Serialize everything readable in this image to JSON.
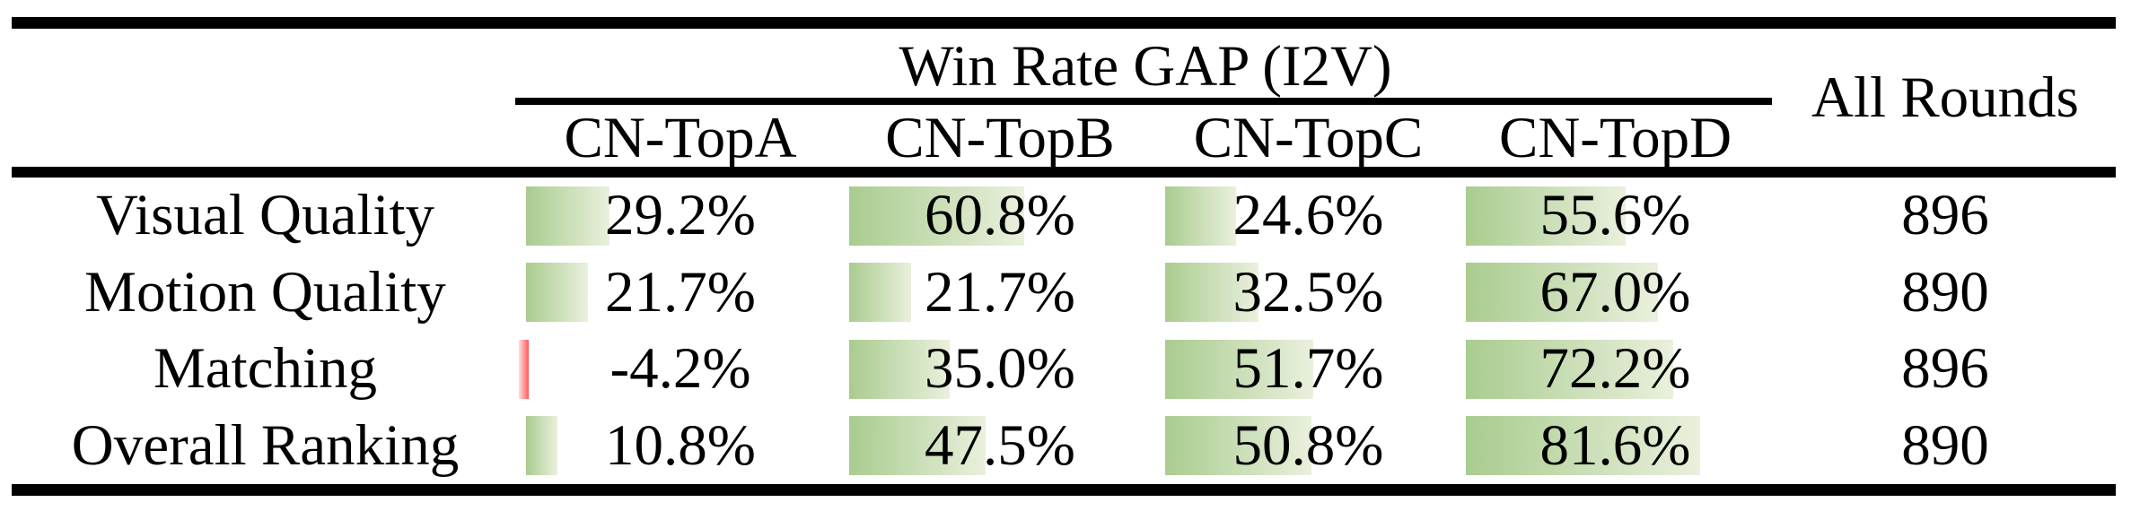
{
  "table": {
    "group_header": "Win Rate GAP (I2V)",
    "all_rounds_header": "All Rounds",
    "columns": [
      "CN-TopA",
      "CN-TopB",
      "CN-TopC",
      "CN-TopD"
    ],
    "rows": [
      {
        "label": "Visual Quality",
        "values": [
          29.2,
          60.8,
          24.6,
          55.6
        ],
        "display": [
          "29.2%",
          "60.8%",
          "24.6%",
          "55.6%"
        ],
        "all_rounds": "896"
      },
      {
        "label": "Motion Quality",
        "values": [
          21.7,
          21.7,
          32.5,
          67.0
        ],
        "display": [
          "21.7%",
          "21.7%",
          "32.5%",
          "67.0%"
        ],
        "all_rounds": "890"
      },
      {
        "label": "Matching",
        "values": [
          -4.2,
          35.0,
          51.7,
          72.2
        ],
        "display": [
          "-4.2%",
          "35.0%",
          "51.7%",
          "72.2%"
        ],
        "all_rounds": "896"
      },
      {
        "label": "Overall Ranking",
        "values": [
          10.8,
          47.5,
          50.8,
          81.6
        ],
        "display": [
          "10.8%",
          "47.5%",
          "50.8%",
          "81.6%"
        ],
        "all_rounds": "890"
      }
    ]
  },
  "chart_data": {
    "type": "table",
    "title": "Win Rate GAP (I2V)",
    "categories": [
      "Visual Quality",
      "Motion Quality",
      "Matching",
      "Overall Ranking"
    ],
    "series": [
      {
        "name": "CN-TopA",
        "values": [
          29.2,
          21.7,
          -4.2,
          10.8
        ]
      },
      {
        "name": "CN-TopB",
        "values": [
          60.8,
          21.7,
          35.0,
          47.5
        ]
      },
      {
        "name": "CN-TopC",
        "values": [
          24.6,
          32.5,
          51.7,
          50.8
        ]
      },
      {
        "name": "CN-TopD",
        "values": [
          55.6,
          67.0,
          72.2,
          81.6
        ]
      }
    ],
    "all_rounds": [
      896,
      890,
      896,
      890
    ],
    "value_unit": "%",
    "bar_scale_note": "in-cell data bars, green positive, red negative"
  },
  "colors": {
    "bar_positive": "#a9cc8f",
    "bar_positive_fade": "#eaf0dd",
    "bar_negative": "#ff5a5a",
    "bar_negative_fade": "#ffdede",
    "rule": "#000000",
    "text": "#000000"
  }
}
